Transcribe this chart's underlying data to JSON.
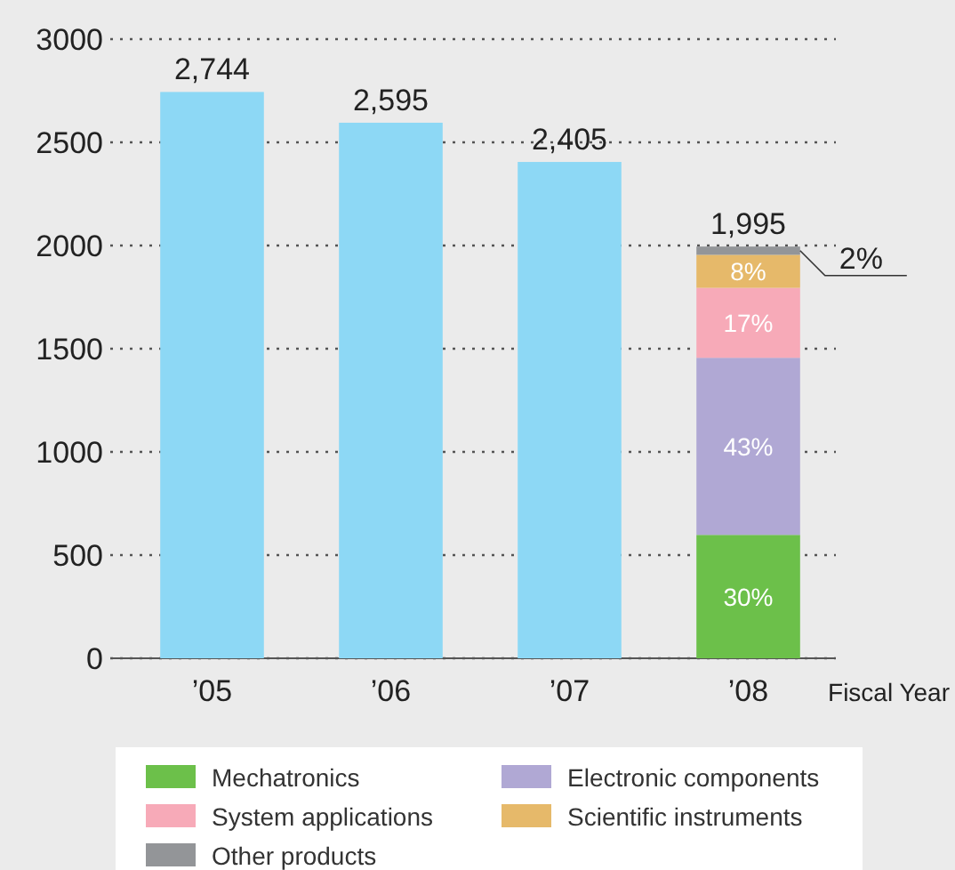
{
  "chart_data": {
    "type": "bar",
    "stacked": true,
    "xlabel": "Fiscal Year",
    "categories": [
      "’05",
      "’06",
      "’07",
      "’08"
    ],
    "series": [
      {
        "color": "#8dd8f5",
        "values": [
          2744,
          2595,
          2405,
          null
        ]
      },
      {
        "name": "Mechatronics",
        "color": "#6cc04a",
        "values": [
          null,
          null,
          null,
          598
        ]
      },
      {
        "name": "Electronic components",
        "color": "#b0a8d4",
        "values": [
          null,
          null,
          null,
          858
        ]
      },
      {
        "name": "System applications",
        "color": "#f7aab8",
        "values": [
          null,
          null,
          null,
          339
        ]
      },
      {
        "name": "Scientific instruments",
        "color": "#e6b96a",
        "values": [
          null,
          null,
          null,
          160
        ]
      },
      {
        "name": "Other products",
        "color": "#939598",
        "values": [
          null,
          null,
          null,
          40
        ]
      }
    ],
    "annotations": [
      "30%",
      "43%",
      "17%",
      "8%",
      "2%"
    ],
    "totals": [
      "2,744",
      "2,595",
      "2,405",
      "1,995"
    ],
    "ylim": [
      0,
      3000
    ],
    "yticks": [
      0,
      500,
      1000,
      1500,
      2000,
      2500,
      3000
    ],
    "grid": "y",
    "line_style": "dotted",
    "legend": "bottom"
  }
}
